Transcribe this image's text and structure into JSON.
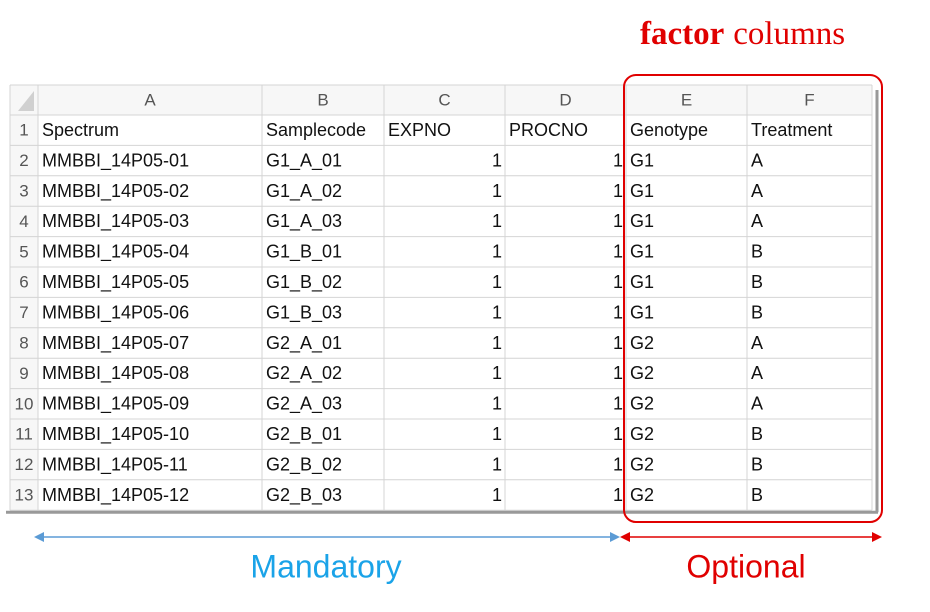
{
  "annotation": {
    "title_bold": "factor",
    "title_rest": "columns",
    "mandatory": "Mandatory",
    "optional": "Optional"
  },
  "sheet": {
    "column_letters": [
      "A",
      "B",
      "C",
      "D",
      "E",
      "F"
    ],
    "row_numbers": [
      1,
      2,
      3,
      4,
      5,
      6,
      7,
      8,
      9,
      10,
      11,
      12,
      13
    ],
    "rows": [
      [
        "Spectrum",
        "Samplecode",
        "EXPNO",
        "PROCNO",
        "Genotype",
        "Treatment"
      ],
      [
        "MMBBI_14P05-01",
        "G1_A_01",
        1,
        1,
        "G1",
        "A"
      ],
      [
        "MMBBI_14P05-02",
        "G1_A_02",
        1,
        1,
        "G1",
        "A"
      ],
      [
        "MMBBI_14P05-03",
        "G1_A_03",
        1,
        1,
        "G1",
        "A"
      ],
      [
        "MMBBI_14P05-04",
        "G1_B_01",
        1,
        1,
        "G1",
        "B"
      ],
      [
        "MMBBI_14P05-05",
        "G1_B_02",
        1,
        1,
        "G1",
        "B"
      ],
      [
        "MMBBI_14P05-06",
        "G1_B_03",
        1,
        1,
        "G1",
        "B"
      ],
      [
        "MMBBI_14P05-07",
        "G2_A_01",
        1,
        1,
        "G2",
        "A"
      ],
      [
        "MMBBI_14P05-08",
        "G2_A_02",
        1,
        1,
        "G2",
        "A"
      ],
      [
        "MMBBI_14P05-09",
        "G2_A_03",
        1,
        1,
        "G2",
        "A"
      ],
      [
        "MMBBI_14P05-10",
        "G2_B_01",
        1,
        1,
        "G2",
        "B"
      ],
      [
        "MMBBI_14P05-11",
        "G2_B_02",
        1,
        1,
        "G2",
        "B"
      ],
      [
        "MMBBI_14P05-12",
        "G2_B_03",
        1,
        1,
        "G2",
        "B"
      ]
    ]
  }
}
